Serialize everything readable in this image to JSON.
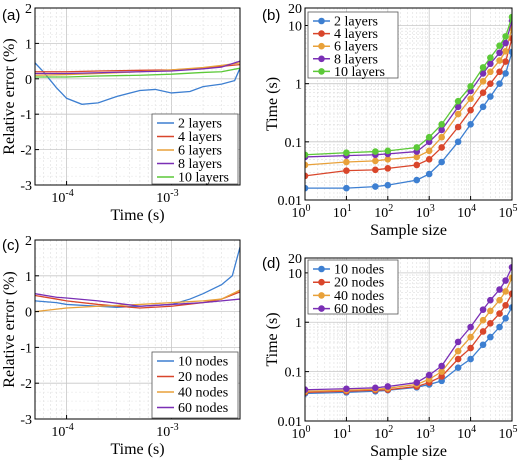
{
  "chart_data": [
    {
      "panel": "(a)",
      "type": "line",
      "xscale": "log",
      "xlim": [
        5e-05,
        0.0045
      ],
      "xticks": [
        0.0001,
        0.001
      ],
      "xtick_labels": [
        "10",
        "10"
      ],
      "xtick_exponents": [
        "-4",
        "-3"
      ],
      "ylim": [
        -3,
        2
      ],
      "yticks": [
        -3,
        -2,
        -1,
        0,
        1,
        2
      ],
      "ytick_labels": [
        "-3",
        "-2",
        "-1",
        "0",
        "1",
        "2"
      ],
      "xlabel": "Time (s)",
      "ylabel": "Relative error (%)",
      "grid": true,
      "legend_position": "bottom-right",
      "series": [
        {
          "name": "2 layers",
          "color": "#3d7fd1",
          "x": [
            5e-05,
            6e-05,
            8e-05,
            0.0001,
            0.00014,
            0.0002,
            0.0003,
            0.0005,
            0.0007,
            0.001,
            0.0015,
            0.002,
            0.003,
            0.004,
            0.0045
          ],
          "y": [
            0.45,
            0.2,
            -0.25,
            -0.55,
            -0.72,
            -0.68,
            -0.5,
            -0.33,
            -0.3,
            -0.4,
            -0.36,
            -0.22,
            -0.15,
            -0.05,
            0.3
          ]
        },
        {
          "name": "4 layers",
          "color": "#d9462b",
          "x": [
            5e-05,
            0.0001,
            0.0002,
            0.0005,
            0.001,
            0.002,
            0.003,
            0.0045
          ],
          "y": [
            0.2,
            0.2,
            0.22,
            0.24,
            0.25,
            0.3,
            0.35,
            0.4
          ]
        },
        {
          "name": "6 layers",
          "color": "#e8a13a",
          "x": [
            5e-05,
            0.0001,
            0.0002,
            0.0005,
            0.001,
            0.002,
            0.003,
            0.0045
          ],
          "y": [
            0.1,
            0.12,
            0.15,
            0.2,
            0.25,
            0.32,
            0.38,
            0.45
          ]
        },
        {
          "name": "8 layers",
          "color": "#7a2fb5",
          "x": [
            5e-05,
            0.0001,
            0.0002,
            0.0005,
            0.001,
            0.002,
            0.003,
            0.0045
          ],
          "y": [
            0.15,
            0.15,
            0.17,
            0.2,
            0.22,
            0.28,
            0.33,
            0.5
          ]
        },
        {
          "name": "10 layers",
          "color": "#5cc938",
          "x": [
            5e-05,
            0.0001,
            0.0002,
            0.0005,
            0.001,
            0.002,
            0.003,
            0.0045
          ],
          "y": [
            0.05,
            0.05,
            0.08,
            0.1,
            0.13,
            0.18,
            0.2,
            0.3
          ]
        }
      ]
    },
    {
      "panel": "(b)",
      "type": "line",
      "xscale": "log",
      "yscale": "log",
      "xlim": [
        1,
        100000
      ],
      "ylim": [
        0.01,
        20
      ],
      "xticks": [
        1,
        10,
        100,
        1000,
        10000,
        100000
      ],
      "xtick_labels": [
        "10",
        "10",
        "10",
        "10",
        "10",
        "10"
      ],
      "xtick_exponents": [
        "0",
        "1",
        "2",
        "3",
        "4",
        "5"
      ],
      "yticks": [
        0.01,
        0.1,
        1,
        10,
        20
      ],
      "ytick_labels": [
        "0.01",
        "0.1",
        "1",
        "10",
        "20"
      ],
      "xlabel": "Sample size",
      "ylabel": "Time (s)",
      "grid": true,
      "markers": true,
      "legend_position": "top-left",
      "x": [
        1,
        10,
        50,
        100,
        500,
        1000,
        2000,
        5000,
        10000,
        20000,
        30000,
        50000,
        70000,
        100000
      ],
      "series": [
        {
          "name": "2 layers",
          "color": "#3d7fd1",
          "values": [
            0.016,
            0.016,
            0.017,
            0.018,
            0.022,
            0.028,
            0.045,
            0.1,
            0.2,
            0.4,
            0.6,
            1.0,
            1.5,
            3.5
          ]
        },
        {
          "name": "4 layers",
          "color": "#d9462b",
          "values": [
            0.026,
            0.032,
            0.033,
            0.035,
            0.04,
            0.05,
            0.08,
            0.18,
            0.35,
            0.7,
            1.0,
            1.6,
            2.4,
            6.0
          ]
        },
        {
          "name": "6 layers",
          "color": "#e8a13a",
          "values": [
            0.04,
            0.045,
            0.047,
            0.05,
            0.055,
            0.07,
            0.12,
            0.3,
            0.55,
            1.1,
            1.6,
            2.5,
            3.6,
            9.0
          ]
        },
        {
          "name": "8 layers",
          "color": "#7a2fb5",
          "values": [
            0.055,
            0.058,
            0.06,
            0.062,
            0.068,
            0.1,
            0.16,
            0.4,
            0.75,
            1.5,
            2.2,
            3.4,
            5.0,
            12.0
          ]
        },
        {
          "name": "10 layers",
          "color": "#5cc938",
          "values": [
            0.06,
            0.065,
            0.068,
            0.07,
            0.08,
            0.12,
            0.2,
            0.5,
            0.9,
            1.9,
            2.8,
            4.5,
            6.5,
            14.0
          ]
        }
      ]
    },
    {
      "panel": "(c)",
      "type": "line",
      "xscale": "log",
      "xlim": [
        5e-05,
        0.0045
      ],
      "xticks": [
        0.0001,
        0.001
      ],
      "xtick_labels": [
        "10",
        "10"
      ],
      "xtick_exponents": [
        "-4",
        "-3"
      ],
      "ylim": [
        -3,
        2
      ],
      "yticks": [
        -3,
        -2,
        -1,
        0,
        1,
        2
      ],
      "ytick_labels": [
        "-3",
        "-2",
        "-1",
        "0",
        "1",
        "2"
      ],
      "xlabel": "Time (s)",
      "ylabel": "Relative error (%)",
      "grid": true,
      "legend_position": "bottom-right",
      "series": [
        {
          "name": "10 nodes",
          "color": "#3d7fd1",
          "x": [
            5e-05,
            8e-05,
            0.0001,
            0.0002,
            0.0003,
            0.0005,
            0.001,
            0.0015,
            0.002,
            0.003,
            0.0038,
            0.0045
          ],
          "y": [
            0.3,
            0.25,
            0.2,
            0.15,
            0.12,
            0.15,
            0.2,
            0.35,
            0.5,
            0.75,
            1.0,
            1.8
          ]
        },
        {
          "name": "20 nodes",
          "color": "#d9462b",
          "x": [
            5e-05,
            8e-05,
            0.0001,
            0.0002,
            0.0005,
            0.001,
            0.002,
            0.003,
            0.0045
          ],
          "y": [
            0.45,
            0.35,
            0.3,
            0.2,
            0.1,
            0.15,
            0.25,
            0.35,
            0.55
          ]
        },
        {
          "name": "40 nodes",
          "color": "#e8a13a",
          "x": [
            5e-05,
            0.0001,
            0.0002,
            0.0005,
            0.001,
            0.002,
            0.003,
            0.0045
          ],
          "y": [
            0.0,
            0.1,
            0.15,
            0.2,
            0.25,
            0.3,
            0.35,
            0.6
          ]
        },
        {
          "name": "60 nodes",
          "color": "#7a2fb5",
          "x": [
            5e-05,
            8e-05,
            0.0001,
            0.0002,
            0.0005,
            0.001,
            0.002,
            0.003,
            0.0045
          ],
          "y": [
            0.5,
            0.4,
            0.38,
            0.3,
            0.15,
            0.2,
            0.25,
            0.3,
            0.35
          ]
        }
      ]
    },
    {
      "panel": "(d)",
      "type": "line",
      "xscale": "log",
      "yscale": "log",
      "xlim": [
        1,
        100000
      ],
      "ylim": [
        0.01,
        20
      ],
      "xticks": [
        1,
        10,
        100,
        1000,
        10000,
        100000
      ],
      "xtick_labels": [
        "10",
        "10",
        "10",
        "10",
        "10",
        "10"
      ],
      "xtick_exponents": [
        "0",
        "1",
        "2",
        "3",
        "4",
        "5"
      ],
      "yticks": [
        0.01,
        0.1,
        1,
        10,
        20
      ],
      "ytick_labels": [
        "0.01",
        "0.1",
        "1",
        "10",
        "20"
      ],
      "xlabel": "Sample size",
      "ylabel": "Time (s)",
      "grid": true,
      "markers": true,
      "legend_position": "top-left",
      "x": [
        1,
        10,
        50,
        100,
        500,
        1000,
        2000,
        5000,
        10000,
        20000,
        30000,
        50000,
        70000,
        100000
      ],
      "series": [
        {
          "name": "10 nodes",
          "color": "#3d7fd1",
          "values": [
            0.036,
            0.038,
            0.04,
            0.042,
            0.048,
            0.055,
            0.065,
            0.12,
            0.18,
            0.35,
            0.5,
            0.8,
            1.2,
            2.0
          ]
        },
        {
          "name": "20 nodes",
          "color": "#d9462b",
          "values": [
            0.038,
            0.04,
            0.042,
            0.043,
            0.05,
            0.06,
            0.08,
            0.18,
            0.3,
            0.65,
            0.95,
            1.5,
            2.2,
            3.8
          ]
        },
        {
          "name": "40 nodes",
          "color": "#e8a13a",
          "values": [
            0.04,
            0.042,
            0.044,
            0.046,
            0.055,
            0.07,
            0.1,
            0.26,
            0.5,
            1.1,
            1.7,
            2.8,
            4.2,
            8.0
          ]
        },
        {
          "name": "60 nodes",
          "color": "#7a2fb5",
          "values": [
            0.043,
            0.045,
            0.047,
            0.05,
            0.06,
            0.085,
            0.13,
            0.4,
            0.8,
            1.8,
            2.8,
            4.6,
            7.0,
            13.0
          ]
        }
      ]
    }
  ]
}
